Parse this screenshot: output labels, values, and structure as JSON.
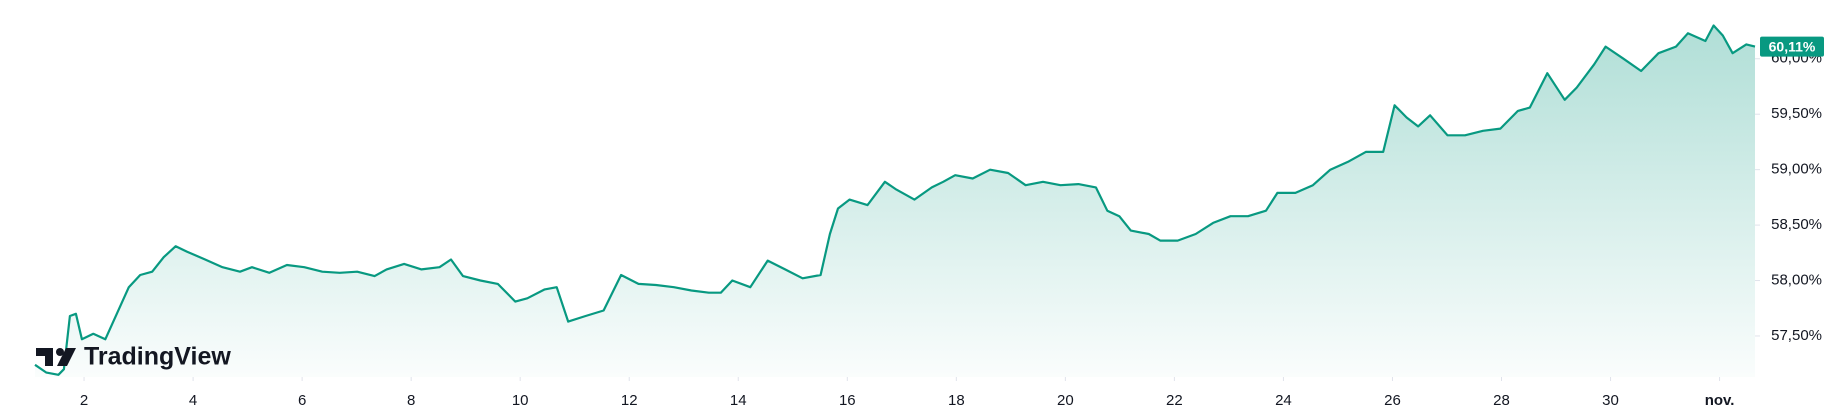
{
  "chart_data": {
    "type": "area",
    "logo": "TradingView",
    "price_label": "60,11%",
    "series": [
      {
        "color": "#089981",
        "x": [
          1.1,
          1.31,
          1.53,
          1.63,
          1.74,
          1.85,
          1.96,
          2.17,
          2.39,
          2.6,
          2.82,
          3.03,
          3.25,
          3.46,
          3.68,
          3.89,
          4.22,
          4.54,
          4.86,
          5.08,
          5.4,
          5.72,
          6.04,
          6.37,
          6.69,
          7.01,
          7.33,
          7.55,
          7.87,
          8.19,
          8.52,
          8.73,
          8.95,
          9.27,
          9.59,
          9.91,
          10.13,
          10.45,
          10.67,
          10.88,
          11.2,
          11.53,
          11.85,
          12.17,
          12.49,
          12.82,
          13.14,
          13.46,
          13.68,
          13.89,
          14.22,
          14.54,
          14.86,
          15.18,
          15.51,
          15.68,
          15.83,
          16.04,
          16.37,
          16.69,
          16.9,
          17.23,
          17.55,
          17.76,
          17.98,
          18.3,
          18.62,
          18.95,
          19.27,
          19.59,
          19.91,
          20.24,
          20.56,
          20.77,
          20.99,
          21.2,
          21.53,
          21.74,
          22.06,
          22.39,
          22.71,
          23.03,
          23.35,
          23.68,
          23.89,
          24.22,
          24.54,
          24.86,
          25.18,
          25.51,
          25.83,
          26.04,
          26.26,
          26.47,
          26.69,
          27.01,
          27.33,
          27.66,
          27.98,
          28.3,
          28.52,
          28.84,
          29.16,
          29.38,
          29.7,
          29.91,
          30.24,
          30.56,
          30.88,
          31.2,
          31.42,
          31.74,
          31.89,
          32.06,
          32.24,
          32.49,
          32.65
        ],
        "values": [
          57.24,
          57.17,
          57.15,
          57.2,
          57.68,
          57.7,
          57.47,
          57.52,
          57.47,
          57.7,
          57.94,
          58.05,
          58.08,
          58.21,
          58.31,
          58.26,
          58.19,
          58.12,
          58.08,
          58.12,
          58.07,
          58.14,
          58.12,
          58.08,
          58.07,
          58.08,
          58.04,
          58.1,
          58.15,
          58.1,
          58.12,
          58.19,
          58.04,
          58.0,
          57.97,
          57.81,
          57.84,
          57.92,
          57.94,
          57.63,
          57.68,
          57.73,
          58.05,
          57.97,
          57.96,
          57.94,
          57.91,
          57.89,
          57.89,
          58.0,
          57.94,
          58.18,
          58.1,
          58.02,
          58.05,
          58.42,
          58.65,
          58.73,
          58.68,
          58.89,
          58.82,
          58.73,
          58.84,
          58.89,
          58.95,
          58.92,
          59.0,
          58.97,
          58.86,
          58.89,
          58.86,
          58.87,
          58.84,
          58.63,
          58.58,
          58.45,
          58.42,
          58.36,
          58.36,
          58.42,
          58.52,
          58.58,
          58.58,
          58.63,
          58.79,
          58.79,
          58.86,
          59.0,
          59.07,
          59.16,
          59.16,
          59.58,
          59.47,
          59.39,
          59.49,
          59.31,
          59.31,
          59.35,
          59.37,
          59.53,
          59.56,
          59.87,
          59.63,
          59.74,
          59.95,
          60.11,
          60.0,
          59.89,
          60.05,
          60.11,
          60.23,
          60.16,
          60.3,
          60.21,
          60.05,
          60.13,
          60.11
        ]
      }
    ],
    "xlim": [
      1.1,
      32.65
    ],
    "xticks": [
      2,
      4,
      6,
      8,
      10,
      12,
      14,
      16,
      18,
      20,
      22,
      24,
      26,
      28,
      30,
      {
        "value": 32,
        "label": "nov."
      }
    ],
    "ylim": [
      57.13,
      60.53
    ],
    "yticks": [
      {
        "value": 57.5,
        "label": "57,50%"
      },
      {
        "value": 58,
        "label": "58,00%"
      },
      {
        "value": 58.5,
        "label": "58,50%"
      },
      {
        "value": 59,
        "label": "59,00%"
      },
      {
        "value": 59.5,
        "label": "59,50%"
      },
      {
        "value": 60,
        "label": "60,00%"
      }
    ],
    "grid": false
  }
}
